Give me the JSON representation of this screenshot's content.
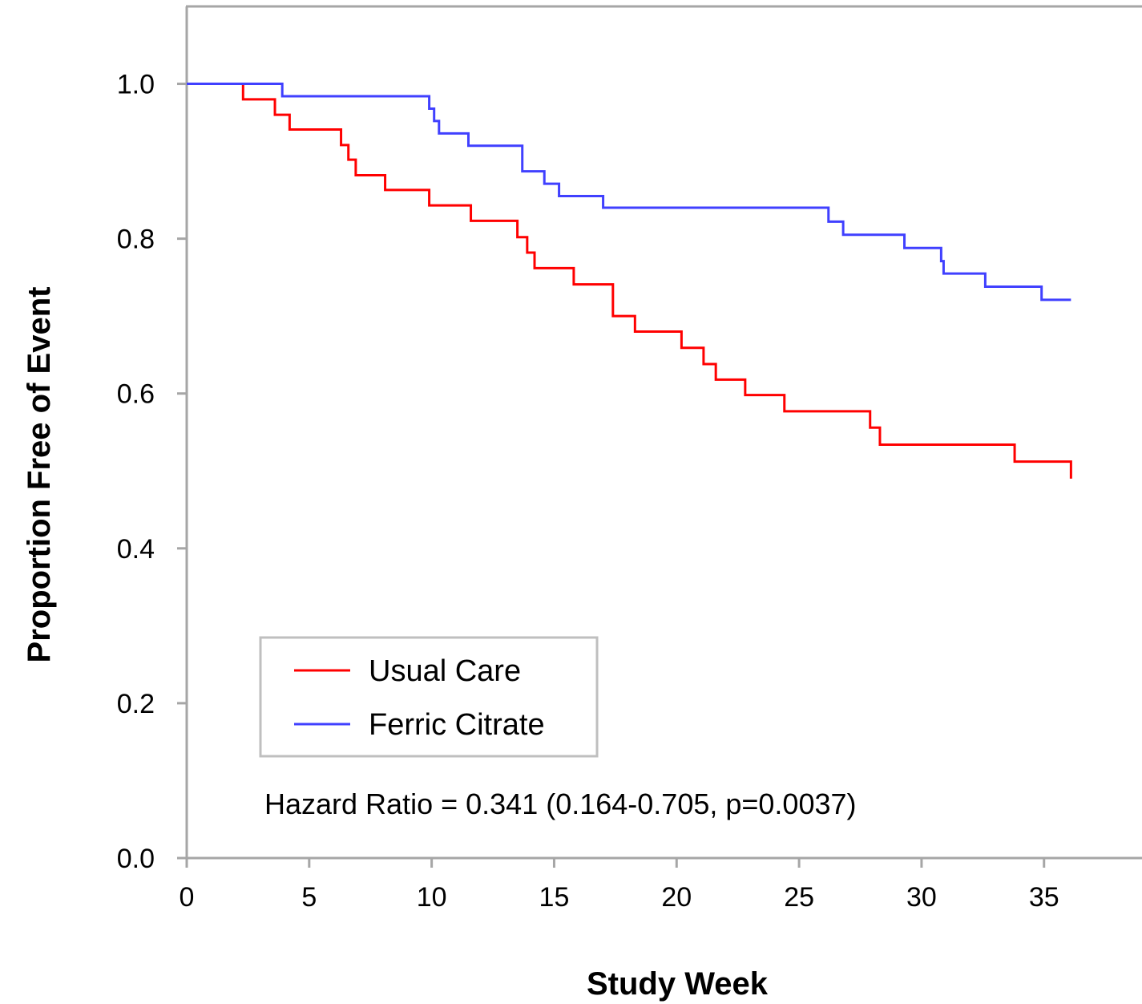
{
  "chart_data": {
    "type": "line",
    "step": true,
    "title": "",
    "xlabel": "Study Week",
    "ylabel": "Proportion Free of Event",
    "xlim": [
      0,
      39
    ],
    "ylim": [
      0,
      1.1
    ],
    "xticks": [
      0,
      5,
      10,
      15,
      20,
      25,
      30,
      35
    ],
    "yticks": [
      0.0,
      0.2,
      0.4,
      0.6,
      0.8,
      1.0
    ],
    "xtick_labels": [
      "0",
      "5",
      "10",
      "15",
      "20",
      "25",
      "30",
      "35"
    ],
    "ytick_labels": [
      "0.0",
      "0.2",
      "0.4",
      "0.6",
      "0.8",
      "1.0"
    ],
    "grid": false,
    "legend_position": "lower-left",
    "series": [
      {
        "name": "Usual Care",
        "color": "#ff0000",
        "x": [
          0,
          2.3,
          3.6,
          4.2,
          6.3,
          6.6,
          6.9,
          7.1,
          8.1,
          9.9,
          11.6,
          13.5,
          13.9,
          14.2,
          14.5,
          15.8,
          17.4,
          18.3,
          20.2,
          21.1,
          21.6,
          22.8,
          24.4,
          27.9,
          28.3,
          33.8,
          36.1,
          36.1
        ],
        "y": [
          1.0,
          0.98,
          0.96,
          0.941,
          0.921,
          0.902,
          0.882,
          0.882,
          0.863,
          0.843,
          0.823,
          0.802,
          0.782,
          0.762,
          0.762,
          0.741,
          0.7,
          0.68,
          0.659,
          0.638,
          0.618,
          0.598,
          0.577,
          0.556,
          0.534,
          0.512,
          0.49,
          0.49
        ]
      },
      {
        "name": "Ferric Citrate",
        "color": "#4040ff",
        "x": [
          0,
          3.9,
          9.9,
          10.1,
          10.3,
          10.6,
          11.5,
          13.7,
          14.6,
          14.8,
          15.2,
          17.0,
          26.2,
          26.8,
          29.3,
          30.8,
          30.9,
          32.6,
          34.9,
          36.1
        ],
        "y": [
          1.0,
          0.984,
          0.968,
          0.952,
          0.936,
          0.936,
          0.92,
          0.887,
          0.871,
          0.871,
          0.855,
          0.84,
          0.822,
          0.805,
          0.788,
          0.771,
          0.755,
          0.738,
          0.721,
          0.721
        ]
      }
    ],
    "annotation": "Hazard Ratio = 0.341 (0.164-0.705, p=0.0037)"
  }
}
